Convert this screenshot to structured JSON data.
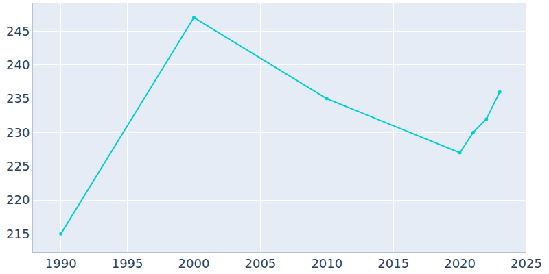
{
  "chart_data": {
    "type": "line",
    "x": [
      1990,
      2000,
      2010,
      2020,
      2021,
      2022,
      2023
    ],
    "values": [
      215,
      247,
      235,
      227,
      230,
      232,
      236
    ],
    "color": "#00ced1",
    "marker": "circle",
    "xlim": [
      1987.9,
      2025
    ],
    "xticks": [
      1990,
      1995,
      2000,
      2005,
      2010,
      2015,
      2020,
      2025
    ],
    "ylim": [
      212.3,
      249.1
    ],
    "yticks": [
      215,
      220,
      225,
      230,
      235,
      240,
      245
    ],
    "grid": true
  }
}
